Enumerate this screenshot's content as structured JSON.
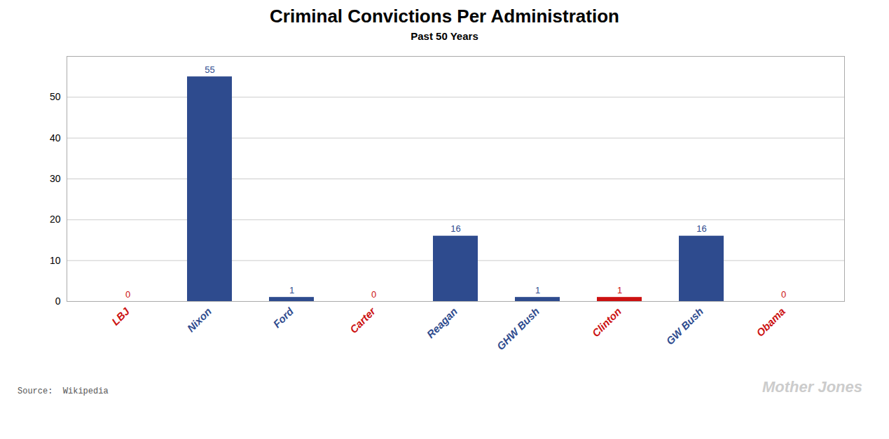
{
  "chart_data": {
    "type": "bar",
    "title": "Criminal Convictions Per Administration",
    "subtitle": "Past 50 Years",
    "annotations": [
      "Source:  Wikipedia",
      "Mother Jones"
    ],
    "categories": [
      "LBJ",
      "Nixon",
      "Ford",
      "Carter",
      "Reagan",
      "GHW Bush",
      "Clinton",
      "GW Bush",
      "Obama"
    ],
    "values": [
      0,
      55,
      1,
      0,
      16,
      1,
      1,
      16,
      0
    ],
    "colors": [
      "#CC1111",
      "#2E4B8E",
      "#2E4B8E",
      "#CC1111",
      "#2E4B8E",
      "#2E4B8E",
      "#CC1111",
      "#2E4B8E",
      "#CC1111"
    ],
    "ylim": [
      0,
      60
    ],
    "yticks": [
      0,
      10,
      20,
      30,
      40,
      50
    ],
    "grid": true,
    "data_labels": true
  }
}
